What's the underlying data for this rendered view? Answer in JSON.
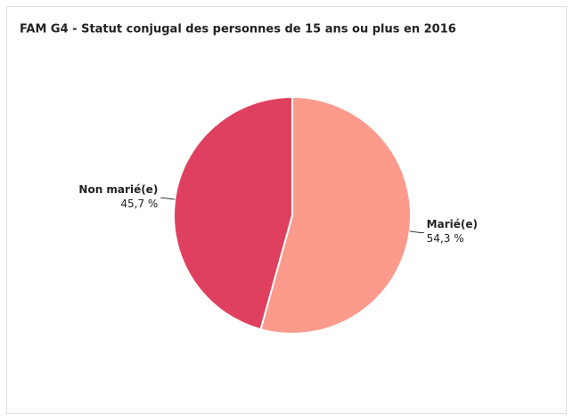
{
  "chart_data": {
    "type": "pie",
    "title": "FAM G4 - Statut conjugal des personnes de 15 ans ou plus en 2016",
    "categories": [
      "Marié(e)",
      "Non marié(e)"
    ],
    "values": [
      54.3,
      45.7
    ],
    "value_labels": [
      "54,3 %",
      "45,7 %"
    ],
    "colors": [
      "#fc9a8c",
      "#e0405f"
    ]
  }
}
